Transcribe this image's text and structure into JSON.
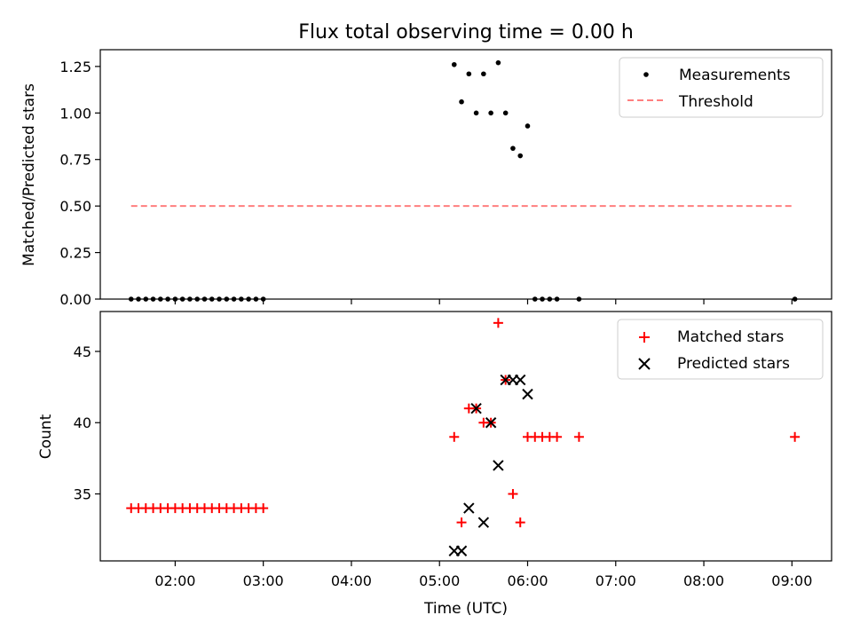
{
  "figure": {
    "title": "Flux total observing time = 0.00 h"
  },
  "chart_data": [
    {
      "type": "scatter",
      "ylabel": "Matched/Predicted stars",
      "xlabel": "",
      "xlim": [
        "01:09",
        "09:27"
      ],
      "ylim": [
        0,
        1.34
      ],
      "yticks": [
        0.0,
        0.25,
        0.5,
        0.75,
        1.0,
        1.25
      ],
      "ytick_labels": [
        "0.00",
        "0.25",
        "0.50",
        "0.75",
        "1.00",
        "1.25"
      ],
      "xtick_labels_visible": false,
      "legend": {
        "placement": "top-right",
        "entries": [
          "Measurements",
          "Threshold"
        ]
      },
      "series": [
        {
          "name": "Measurements",
          "marker": "dot",
          "color": "#000000",
          "points": [
            [
              "01:30",
              0
            ],
            [
              "01:35",
              0
            ],
            [
              "01:40",
              0
            ],
            [
              "01:45",
              0
            ],
            [
              "01:50",
              0
            ],
            [
              "01:55",
              0
            ],
            [
              "02:00",
              0
            ],
            [
              "02:05",
              0
            ],
            [
              "02:10",
              0
            ],
            [
              "02:15",
              0
            ],
            [
              "02:20",
              0
            ],
            [
              "02:25",
              0
            ],
            [
              "02:30",
              0
            ],
            [
              "02:35",
              0
            ],
            [
              "02:40",
              0
            ],
            [
              "02:45",
              0
            ],
            [
              "02:50",
              0
            ],
            [
              "02:55",
              0
            ],
            [
              "03:00",
              0
            ],
            [
              "05:10",
              1.26
            ],
            [
              "05:15",
              1.06
            ],
            [
              "05:20",
              1.21
            ],
            [
              "05:25",
              1.0
            ],
            [
              "05:30",
              1.21
            ],
            [
              "05:35",
              1.0
            ],
            [
              "05:40",
              1.27
            ],
            [
              "05:45",
              1.0
            ],
            [
              "05:50",
              0.81
            ],
            [
              "05:55",
              0.77
            ],
            [
              "06:00",
              0.93
            ],
            [
              "06:05",
              0
            ],
            [
              "06:10",
              0
            ],
            [
              "06:15",
              0
            ],
            [
              "06:20",
              0
            ],
            [
              "06:35",
              0
            ],
            [
              "09:02",
              0
            ]
          ]
        },
        {
          "name": "Threshold",
          "style": "dashed",
          "color": "#ff7f7f",
          "points": [
            [
              "01:30",
              0.5
            ],
            [
              "09:02",
              0.5
            ]
          ]
        }
      ]
    },
    {
      "type": "scatter",
      "ylabel": "Count",
      "xlabel": "Time (UTC)",
      "xlim": [
        "01:09",
        "09:27"
      ],
      "ylim": [
        30.3,
        47.8
      ],
      "yticks": [
        35,
        40,
        45
      ],
      "ytick_labels": [
        "35",
        "40",
        "45"
      ],
      "xticks": [
        "02:00",
        "03:00",
        "04:00",
        "05:00",
        "06:00",
        "07:00",
        "08:00",
        "09:00"
      ],
      "xtick_labels": [
        "02:00",
        "03:00",
        "04:00",
        "05:00",
        "06:00",
        "07:00",
        "08:00",
        "09:00"
      ],
      "legend": {
        "placement": "top-right",
        "entries": [
          "Matched stars",
          "Predicted stars"
        ]
      },
      "series": [
        {
          "name": "Matched stars",
          "marker": "plus",
          "color": "#ff0000",
          "points": [
            [
              "01:30",
              34
            ],
            [
              "01:35",
              34
            ],
            [
              "01:40",
              34
            ],
            [
              "01:45",
              34
            ],
            [
              "01:50",
              34
            ],
            [
              "01:55",
              34
            ],
            [
              "02:00",
              34
            ],
            [
              "02:05",
              34
            ],
            [
              "02:10",
              34
            ],
            [
              "02:15",
              34
            ],
            [
              "02:20",
              34
            ],
            [
              "02:25",
              34
            ],
            [
              "02:30",
              34
            ],
            [
              "02:35",
              34
            ],
            [
              "02:40",
              34
            ],
            [
              "02:45",
              34
            ],
            [
              "02:50",
              34
            ],
            [
              "02:55",
              34
            ],
            [
              "03:00",
              34
            ],
            [
              "05:10",
              39
            ],
            [
              "05:15",
              33
            ],
            [
              "05:20",
              41
            ],
            [
              "05:25",
              41
            ],
            [
              "05:30",
              40
            ],
            [
              "05:35",
              40
            ],
            [
              "05:40",
              47
            ],
            [
              "05:45",
              43
            ],
            [
              "05:50",
              35
            ],
            [
              "05:55",
              33
            ],
            [
              "06:00",
              39
            ],
            [
              "06:05",
              39
            ],
            [
              "06:10",
              39
            ],
            [
              "06:15",
              39
            ],
            [
              "06:20",
              39
            ],
            [
              "06:35",
              39
            ],
            [
              "09:02",
              39
            ]
          ]
        },
        {
          "name": "Predicted stars",
          "marker": "x",
          "color": "#000000",
          "points": [
            [
              "05:10",
              31
            ],
            [
              "05:15",
              31
            ],
            [
              "05:20",
              34
            ],
            [
              "05:25",
              41
            ],
            [
              "05:30",
              33
            ],
            [
              "05:35",
              40
            ],
            [
              "05:40",
              37
            ],
            [
              "05:45",
              43
            ],
            [
              "05:50",
              43
            ],
            [
              "05:55",
              43
            ],
            [
              "06:00",
              42
            ]
          ]
        }
      ]
    }
  ]
}
